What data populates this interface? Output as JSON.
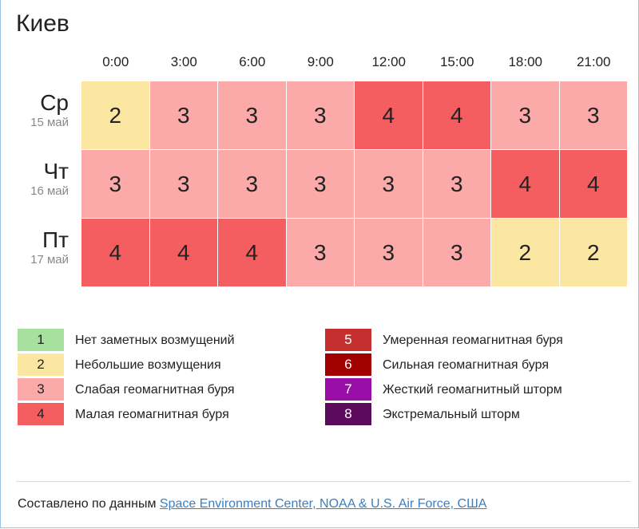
{
  "city": "Киев",
  "hours": [
    "0:00",
    "3:00",
    "6:00",
    "9:00",
    "12:00",
    "15:00",
    "18:00",
    "21:00"
  ],
  "days": [
    {
      "name": "Ср",
      "date": "15 май"
    },
    {
      "name": "Чт",
      "date": "16 май"
    },
    {
      "name": "Пт",
      "date": "17 май"
    }
  ],
  "chart_data": {
    "type": "heatmap",
    "x": [
      "0:00",
      "3:00",
      "6:00",
      "9:00",
      "12:00",
      "15:00",
      "18:00",
      "21:00"
    ],
    "y": [
      "Ср 15 май",
      "Чт 16 май",
      "Пт 17 май"
    ],
    "values": [
      [
        2,
        3,
        3,
        3,
        4,
        4,
        3,
        3
      ],
      [
        3,
        3,
        3,
        3,
        3,
        3,
        4,
        4
      ],
      [
        4,
        4,
        4,
        3,
        3,
        3,
        2,
        2
      ]
    ],
    "level_colors": {
      "1": "#a8e0a0",
      "2": "#fbe7a1",
      "3": "#fba9a9",
      "4": "#f55e61",
      "5": "#c43030",
      "6": "#a00000",
      "7": "#9a0ea8",
      "8": "#5c0a5c"
    },
    "legend_placement": "bottom"
  },
  "legend": [
    {
      "level": "1",
      "label": "Нет заметных возмущений",
      "color": "#a8e0a0",
      "text_color": "#222222"
    },
    {
      "level": "2",
      "label": "Небольшие возмущения",
      "color": "#fbe7a1",
      "text_color": "#222222"
    },
    {
      "level": "3",
      "label": "Слабая геомагнитная буря",
      "color": "#fba9a9",
      "text_color": "#222222"
    },
    {
      "level": "4",
      "label": "Малая геомагнитная буря",
      "color": "#f55e61",
      "text_color": "#222222"
    },
    {
      "level": "5",
      "label": "Умеренная геомагнитная буря",
      "color": "#c43030",
      "text_color": "#ffffff"
    },
    {
      "level": "6",
      "label": "Сильная геомагнитная буря",
      "color": "#a00000",
      "text_color": "#ffffff"
    },
    {
      "level": "7",
      "label": "Жесткий геомагнитный шторм",
      "color": "#9a0ea8",
      "text_color": "#ffffff"
    },
    {
      "level": "8",
      "label": "Экстремальный шторм",
      "color": "#5c0a5c",
      "text_color": "#ffffff"
    }
  ],
  "footer": {
    "prefix": "Составлено по данным ",
    "link_text": "Space Environment Center, NOAA & U.S. Air Force, США"
  }
}
